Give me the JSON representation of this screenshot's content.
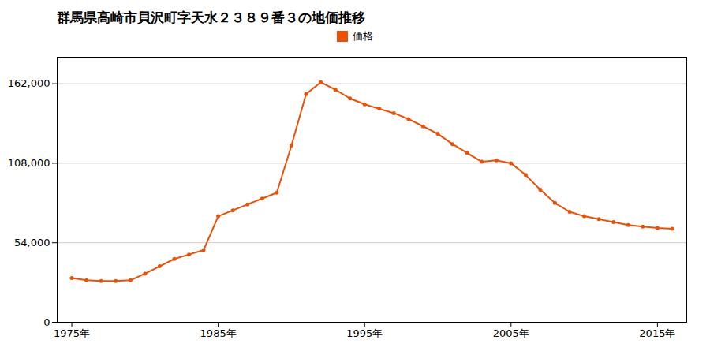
{
  "chart_data": {
    "type": "line",
    "title": "群馬県高崎市貝沢町字天水２３８９番３の地価推移",
    "x": [
      1975,
      1976,
      1977,
      1978,
      1979,
      1980,
      1981,
      1982,
      1983,
      1984,
      1985,
      1986,
      1987,
      1988,
      1989,
      1990,
      1991,
      1992,
      1993,
      1994,
      1995,
      1996,
      1997,
      1998,
      1999,
      2000,
      2001,
      2002,
      2003,
      2004,
      2005,
      2006,
      2007,
      2008,
      2009,
      2010,
      2011,
      2012,
      2013,
      2014,
      2015,
      2016
    ],
    "series": [
      {
        "name": "価格",
        "color": "#e8510a",
        "marker": "circle",
        "values": [
          30000,
          28500,
          28000,
          28000,
          28500,
          33000,
          38000,
          43000,
          46000,
          49000,
          72000,
          76000,
          80000,
          84000,
          88000,
          120000,
          155000,
          163000,
          158000,
          152000,
          148000,
          145000,
          142000,
          138000,
          133000,
          128000,
          121000,
          115000,
          109000,
          110000,
          108000,
          100000,
          90000,
          81000,
          75000,
          72000,
          70000,
          68000,
          66000,
          65000,
          64000,
          63500
        ]
      }
    ],
    "xlim": [
      1974,
      2017
    ],
    "xticks": [
      {
        "value": 1975,
        "label": "1975年"
      },
      {
        "value": 1985,
        "label": "1985年"
      },
      {
        "value": 1995,
        "label": "1995年"
      },
      {
        "value": 2005,
        "label": "2005年"
      },
      {
        "value": 2015,
        "label": "2015年"
      }
    ],
    "ylim": [
      0,
      180000
    ],
    "yticks": [
      0,
      {
        "value": 54000,
        "label": "54,000"
      },
      {
        "value": 108000,
        "label": "108,000"
      },
      {
        "value": 162000,
        "label": "162,000"
      }
    ],
    "grid": "y",
    "legend": "top"
  }
}
